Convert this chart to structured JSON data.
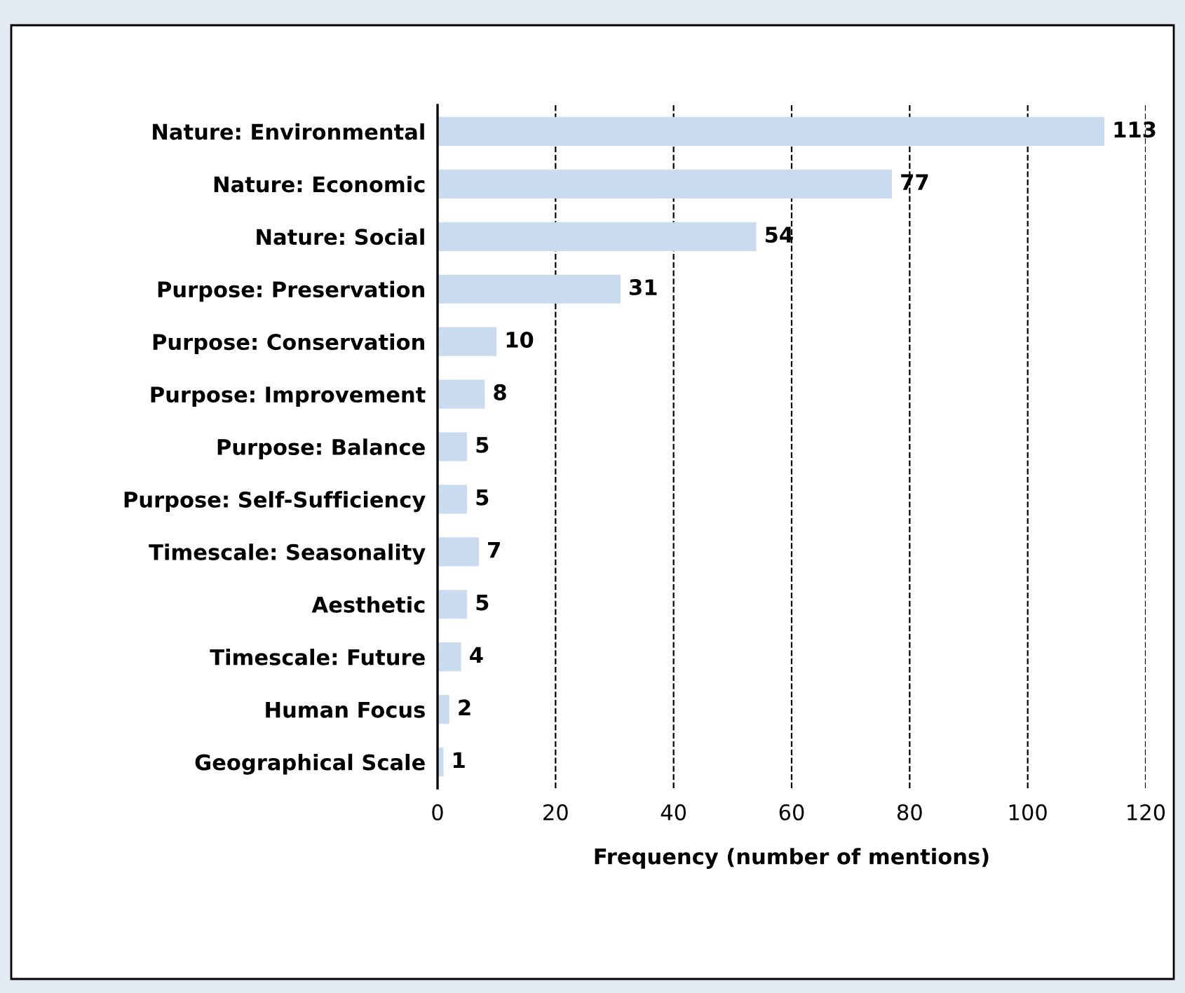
{
  "chart_data": {
    "type": "bar",
    "orientation": "horizontal",
    "xlabel": "Frequency (number of mentions)",
    "categories": [
      "Nature: Environmental",
      "Nature: Economic",
      "Nature: Social",
      "Purpose: Preservation",
      "Purpose: Conservation",
      "Purpose: Improvement",
      "Purpose: Balance",
      "Purpose: Self-Sufficiency",
      "Timescale: Seasonality",
      "Aesthetic",
      "Timescale: Future",
      "Human Focus",
      "Geographical Scale"
    ],
    "values": [
      113,
      77,
      54,
      31,
      10,
      8,
      5,
      5,
      7,
      5,
      4,
      2,
      1
    ],
    "color": "#c9dcef",
    "xlim": [
      0,
      120
    ],
    "xticks": [
      0,
      20,
      40,
      60,
      80,
      100,
      120
    ],
    "grid": "x",
    "data_labels": true
  }
}
